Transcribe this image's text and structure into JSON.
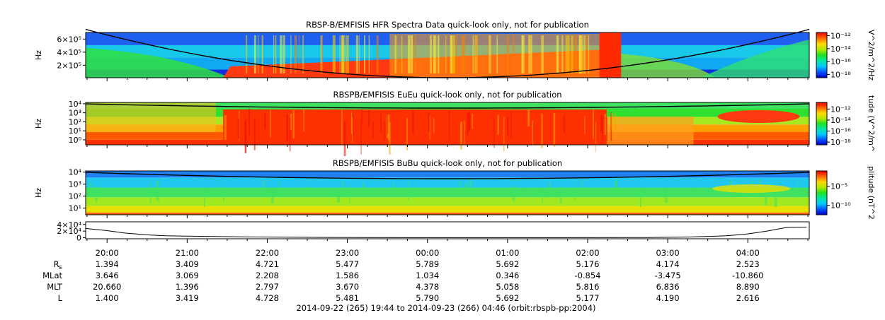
{
  "chart_data": [
    {
      "type": "heatmap",
      "title": "RBSP-B/EMFISIS  HFR Spectra Data quick-look only, not for publication",
      "ylabel": "Hz",
      "yticks": [
        {
          "label": "6×10⁵",
          "value": 600000
        },
        {
          "label": "4×10⁵",
          "value": 400000
        },
        {
          "label": "2×10⁵",
          "value": 200000
        }
      ],
      "ylim": [
        10000,
        700000
      ],
      "colorbar": {
        "label": "V^2/m^2/Hz",
        "ticks": [
          {
            "label": "10⁻¹²",
            "exp": -12
          },
          {
            "label": "10⁻¹⁴",
            "exp": -14
          },
          {
            "label": "10⁻¹⁶",
            "exp": -16
          },
          {
            "label": "10⁻¹⁸",
            "exp": -18
          }
        ],
        "range": [
          -18.5,
          -11.5
        ]
      }
    },
    {
      "type": "heatmap",
      "title": "RBSPB/EMFISIS  EuEu quick-look only, not for publication",
      "ylabel": "Hz",
      "yticks": [
        {
          "label": "10⁴",
          "exp": 4
        },
        {
          "label": "10³",
          "exp": 3
        },
        {
          "label": "10²",
          "exp": 2
        },
        {
          "label": "10¹",
          "exp": 1
        },
        {
          "label": "10⁰",
          "exp": 0
        }
      ],
      "ylim_exp": [
        -0.55,
        4.15
      ],
      "colorbar": {
        "label": "tude (V^2/m^",
        "ticks": [
          {
            "label": "10⁻¹²",
            "exp": -12
          },
          {
            "label": "10⁻¹⁴",
            "exp": -14
          },
          {
            "label": "10⁻¹⁶",
            "exp": -16
          },
          {
            "label": "10⁻¹⁸",
            "exp": -18
          }
        ],
        "range": [
          -18.5,
          -10.8
        ]
      }
    },
    {
      "type": "heatmap",
      "title": "RBSPB/EMFISIS  BuBu quick-look only, not for publication",
      "ylabel": "Hz",
      "yticks": [
        {
          "label": "10⁴",
          "exp": 4
        },
        {
          "label": "10³",
          "exp": 3
        },
        {
          "label": "10²",
          "exp": 2
        },
        {
          "label": "10¹",
          "exp": 1
        }
      ],
      "ylim_exp": [
        0.45,
        4.1
      ],
      "colorbar": {
        "label": "plitude (nT^2",
        "ticks": [
          {
            "label": "10⁻⁵",
            "exp": -5
          },
          {
            "label": "10⁻¹⁰",
            "exp": -10
          }
        ],
        "range": [
          -12.5,
          -1
        ]
      }
    },
    {
      "type": "line",
      "yticks": [
        {
          "label": "4×10⁴",
          "value": 40000
        },
        {
          "label": "2×10⁴",
          "value": 20000
        },
        {
          "label": "0",
          "value": 0
        }
      ],
      "ylim": [
        -3000,
        48000
      ],
      "x_hours": [
        0,
        0.25,
        0.5,
        0.75,
        1.0,
        2.0,
        3.0,
        4.0,
        5.0,
        6.0,
        7.0,
        7.5,
        8.0,
        8.25,
        8.5,
        8.75,
        9.0
      ],
      "y": [
        28000,
        22000,
        14000,
        9000,
        6000,
        2500,
        1000,
        500,
        300,
        400,
        900,
        2000,
        6000,
        11000,
        20000,
        31000,
        32000
      ]
    }
  ],
  "time_axis": {
    "start_label_hour": 19.733,
    "end_label_hour": 28.767,
    "ticks": [
      {
        "label": "20:00",
        "hour": 20
      },
      {
        "label": "21:00",
        "hour": 21
      },
      {
        "label": "22:00",
        "hour": 22
      },
      {
        "label": "23:00",
        "hour": 23
      },
      {
        "label": "00:00",
        "hour": 24
      },
      {
        "label": "01:00",
        "hour": 25
      },
      {
        "label": "02:00",
        "hour": 26
      },
      {
        "label": "03:00",
        "hour": 27
      },
      {
        "label": "04:00",
        "hour": 28
      }
    ]
  },
  "ephemeris": {
    "rows": [
      {
        "name": "R",
        "sub": "E",
        "values": [
          "1.394",
          "3.409",
          "4.721",
          "5.477",
          "5.789",
          "5.692",
          "5.176",
          "4.174",
          "2.523"
        ]
      },
      {
        "name": "MLat",
        "sub": "",
        "values": [
          "3.646",
          "3.069",
          "2.208",
          "1.586",
          "1.034",
          "0.346",
          "-0.854",
          "-3.475",
          "-10.860"
        ]
      },
      {
        "name": "MLT",
        "sub": "",
        "values": [
          "20.660",
          "1.396",
          "2.797",
          "3.670",
          "4.378",
          "5.058",
          "5.816",
          "6.836",
          "8.890"
        ]
      },
      {
        "name": "L",
        "sub": "",
        "values": [
          "1.400",
          "3.419",
          "4.728",
          "5.481",
          "5.790",
          "5.692",
          "5.177",
          "4.190",
          "2.616"
        ]
      }
    ]
  },
  "footer": "2014-09-22 (265) 19:44 to 2014-09-23 (266) 04:46 (orbit:rbspb-pp:2004)"
}
